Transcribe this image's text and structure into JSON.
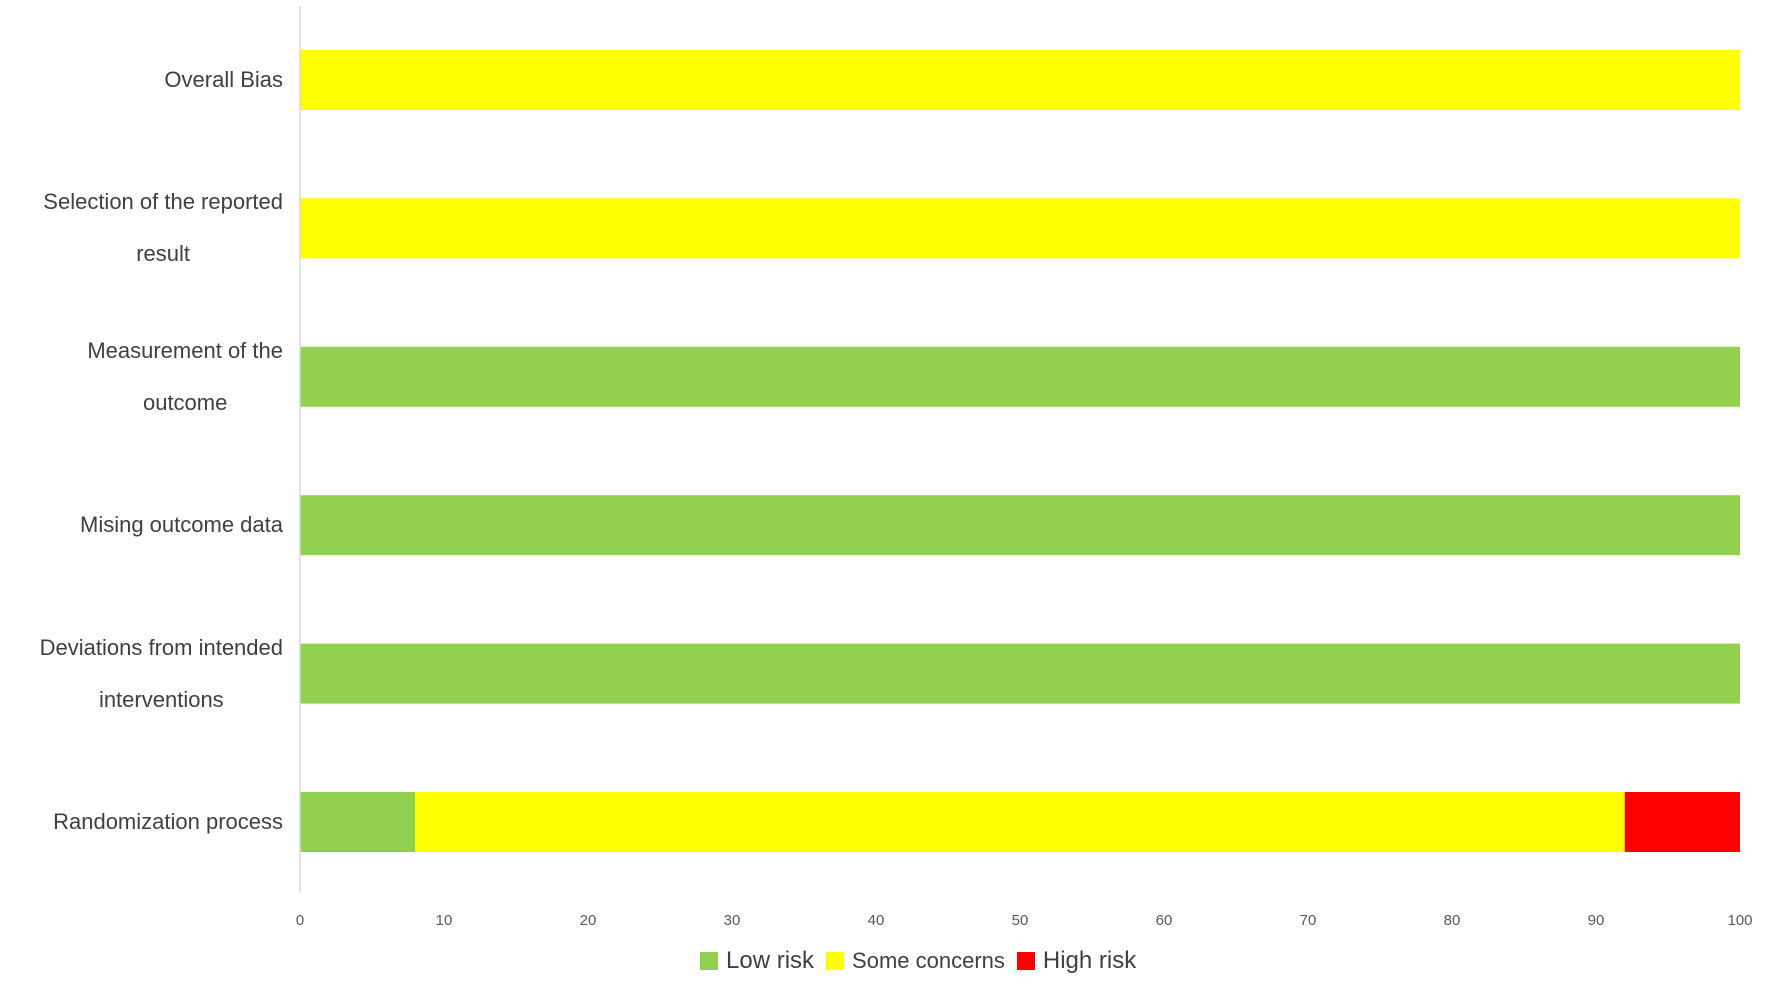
{
  "chart_data": {
    "type": "bar",
    "orientation": "horizontal",
    "stacked": true,
    "categories": [
      "Overall Bias",
      [
        "Selection of the reported",
        "result"
      ],
      [
        "Measurement of the",
        "outcome"
      ],
      "Mising outcome data",
      [
        "Deviations from intended",
        "interventions"
      ],
      "Randomization process"
    ],
    "series": [
      {
        "name": "Low risk",
        "color": "#92d050",
        "values": [
          0,
          0,
          100,
          100,
          100,
          8
        ]
      },
      {
        "name": "Some concerns",
        "color": "#ffff00",
        "values": [
          100,
          100,
          0,
          0,
          0,
          84
        ]
      },
      {
        "name": "High risk",
        "color": "#ff0000",
        "values": [
          0,
          0,
          0,
          0,
          0,
          8
        ]
      }
    ],
    "xlim": [
      0,
      100
    ],
    "xticks": [
      "0",
      "10",
      "20",
      "30",
      "40",
      "50",
      "60",
      "70",
      "80",
      "90",
      "100"
    ],
    "grid": false,
    "legend_position": "bottom"
  }
}
